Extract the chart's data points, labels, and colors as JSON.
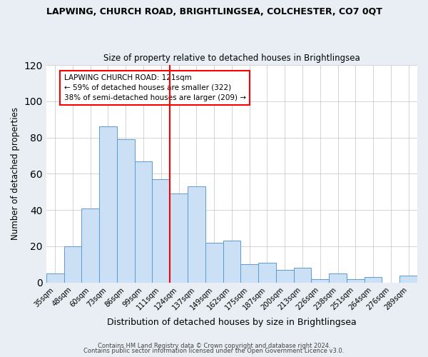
{
  "title": "LAPWING, CHURCH ROAD, BRIGHTLINGSEA, COLCHESTER, CO7 0QT",
  "subtitle": "Size of property relative to detached houses in Brightlingsea",
  "xlabel": "Distribution of detached houses by size in Brightlingsea",
  "ylabel": "Number of detached properties",
  "footer_line1": "Contains HM Land Registry data © Crown copyright and database right 2024.",
  "footer_line2": "Contains public sector information licensed under the Open Government Licence v3.0.",
  "bar_labels": [
    "35sqm",
    "48sqm",
    "60sqm",
    "73sqm",
    "86sqm",
    "99sqm",
    "111sqm",
    "124sqm",
    "137sqm",
    "149sqm",
    "162sqm",
    "175sqm",
    "187sqm",
    "200sqm",
    "213sqm",
    "226sqm",
    "238sqm",
    "251sqm",
    "264sqm",
    "276sqm",
    "289sqm"
  ],
  "bar_values": [
    5,
    20,
    41,
    86,
    79,
    67,
    57,
    49,
    53,
    22,
    23,
    10,
    11,
    7,
    8,
    2,
    5,
    2,
    3,
    0,
    4
  ],
  "bar_color": "#cce0f5",
  "bar_edge_color": "#5b9bd5",
  "vline_color": "red",
  "annotation_text": "LAPWING CHURCH ROAD: 121sqm\n← 59% of detached houses are smaller (322)\n38% of semi-detached houses are larger (209) →",
  "annotation_box_color": "white",
  "annotation_box_edge_color": "red",
  "ylim": [
    0,
    120
  ],
  "yticks": [
    0,
    20,
    40,
    60,
    80,
    100,
    120
  ],
  "background_color": "#e8eef4",
  "plot_bg_color": "white",
  "grid_color": "#cccccc"
}
